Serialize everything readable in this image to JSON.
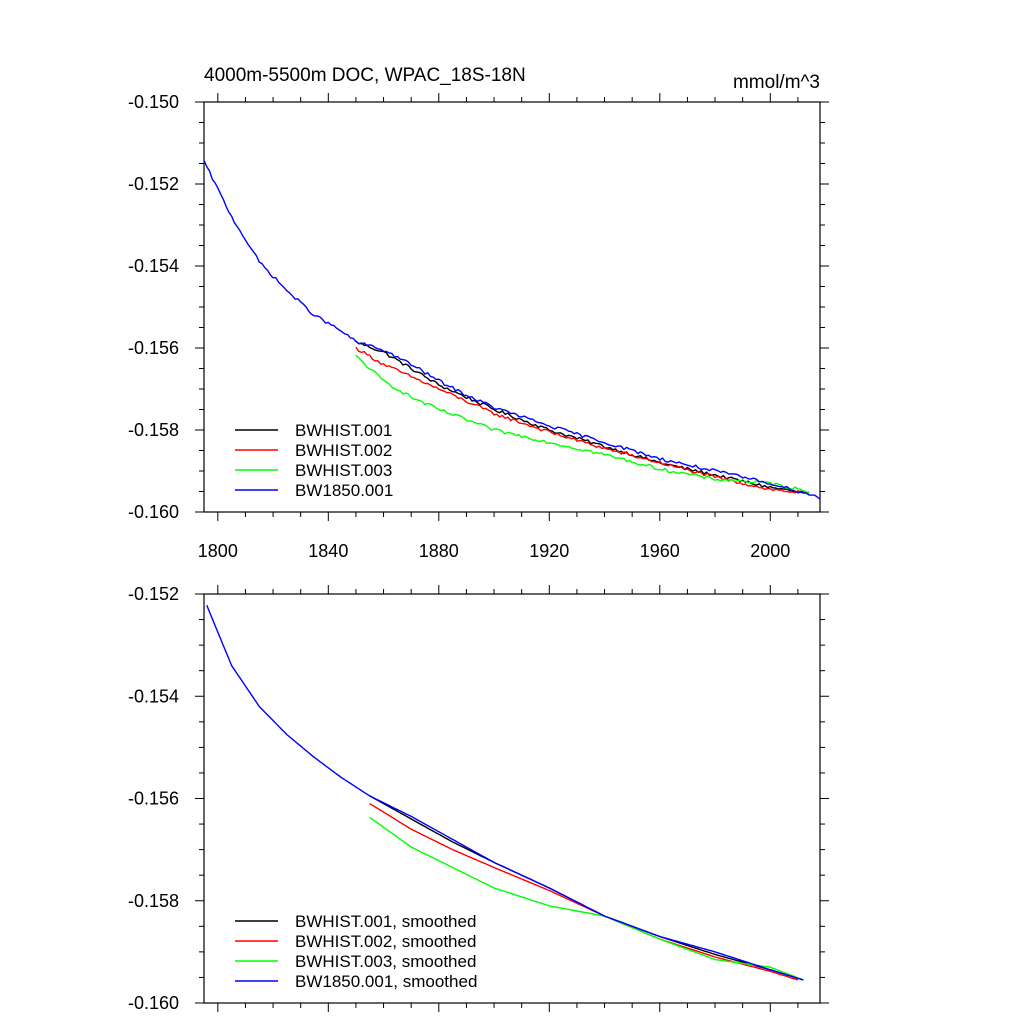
{
  "charts": [
    {
      "title": "4000m-5500m DOC, WPAC_18S-18N",
      "units": "mmol/m^3",
      "ylim": [
        -0.16,
        -0.15
      ],
      "yticks": [
        -0.15,
        -0.152,
        -0.154,
        -0.156,
        -0.158,
        -0.16
      ],
      "ytick_labels": [
        "-0.150",
        "-0.152",
        "-0.154",
        "-0.156",
        "-0.158",
        "-0.160"
      ],
      "xticks": [
        1800,
        1840,
        1880,
        1920,
        1960,
        2000
      ],
      "xtick_labels": [
        "1800",
        "1840",
        "1880",
        "1920",
        "1960",
        "2000"
      ],
      "legend": [
        "BWHIST.001",
        "BWHIST.002",
        "BWHIST.003",
        "BW1850.001"
      ]
    },
    {
      "ylim": [
        -0.16,
        -0.152
      ],
      "yticks": [
        -0.152,
        -0.154,
        -0.156,
        -0.158,
        -0.16
      ],
      "ytick_labels": [
        "-0.152",
        "-0.154",
        "-0.156",
        "-0.158",
        "-0.160"
      ],
      "xticks": [
        1800,
        1840,
        1880,
        1920,
        1960,
        2000
      ],
      "legend": [
        "BWHIST.001, smoothed",
        "BWHIST.002, smoothed",
        "BWHIST.003, smoothed",
        "BW1850.001, smoothed"
      ]
    }
  ],
  "chart_data": [
    {
      "type": "line",
      "title": "4000m-5500m DOC, WPAC_18S-18N",
      "units": "mmol/m^3",
      "xlim": [
        1795,
        2018
      ],
      "ylim": [
        -0.16,
        -0.15
      ],
      "grid": false,
      "legend_position": "bottom-left",
      "noisy": true,
      "series": [
        {
          "name": "BWHIST.001",
          "color": "#000000",
          "x": [
            1850,
            1860,
            1870,
            1880,
            1890,
            1900,
            1920,
            1940,
            1960,
            1980,
            2000,
            2014
          ],
          "y": [
            -0.15585,
            -0.1561,
            -0.1565,
            -0.1569,
            -0.1572,
            -0.1575,
            -0.158,
            -0.1584,
            -0.1588,
            -0.1591,
            -0.1594,
            -0.15955
          ]
        },
        {
          "name": "BWHIST.002",
          "color": "#ff0000",
          "x": [
            1850,
            1860,
            1870,
            1880,
            1890,
            1900,
            1920,
            1940,
            1960,
            1980,
            2000,
            2014
          ],
          "y": [
            -0.156,
            -0.1564,
            -0.1567,
            -0.157,
            -0.1573,
            -0.1576,
            -0.15805,
            -0.15845,
            -0.1588,
            -0.15915,
            -0.15945,
            -0.15955
          ]
        },
        {
          "name": "BWHIST.003",
          "color": "#00ff00",
          "x": [
            1850,
            1860,
            1870,
            1880,
            1890,
            1900,
            1920,
            1940,
            1960,
            1980,
            2000,
            2014
          ],
          "y": [
            -0.1562,
            -0.1568,
            -0.1572,
            -0.1575,
            -0.15775,
            -0.158,
            -0.1583,
            -0.1586,
            -0.15895,
            -0.1592,
            -0.1593,
            -0.1595
          ]
        },
        {
          "name": "BW1850.001",
          "color": "#0000ff",
          "x": [
            1795,
            1805,
            1815,
            1825,
            1835,
            1845,
            1850,
            1860,
            1870,
            1880,
            1890,
            1900,
            1920,
            1940,
            1960,
            1980,
            2000,
            2018
          ],
          "y": [
            -0.15145,
            -0.1528,
            -0.1539,
            -0.1546,
            -0.1552,
            -0.1556,
            -0.15585,
            -0.15605,
            -0.1564,
            -0.1568,
            -0.15715,
            -0.15745,
            -0.1579,
            -0.1583,
            -0.1587,
            -0.159,
            -0.1593,
            -0.15965
          ]
        }
      ]
    },
    {
      "type": "line",
      "xlim": [
        1795,
        2018
      ],
      "ylim": [
        -0.16,
        -0.152
      ],
      "grid": false,
      "legend_position": "bottom-left",
      "noisy": false,
      "series": [
        {
          "name": "BWHIST.001, smoothed",
          "color": "#000000",
          "x": [
            1855,
            1870,
            1885,
            1900,
            1920,
            1940,
            1960,
            1980,
            2000,
            2012
          ],
          "y": [
            -0.15595,
            -0.1564,
            -0.15685,
            -0.15725,
            -0.15775,
            -0.1583,
            -0.1587,
            -0.15905,
            -0.15935,
            -0.15955
          ]
        },
        {
          "name": "BWHIST.002, smoothed",
          "color": "#ff0000",
          "x": [
            1855,
            1870,
            1885,
            1900,
            1920,
            1940,
            1960,
            1980,
            2000,
            2010
          ],
          "y": [
            -0.1561,
            -0.1566,
            -0.157,
            -0.15735,
            -0.1578,
            -0.1583,
            -0.15875,
            -0.1591,
            -0.15938,
            -0.15955
          ]
        },
        {
          "name": "BWHIST.003, smoothed",
          "color": "#00ff00",
          "x": [
            1855,
            1870,
            1885,
            1900,
            1920,
            1940,
            1960,
            1980,
            2000,
            2012
          ],
          "y": [
            -0.15637,
            -0.15695,
            -0.15735,
            -0.15775,
            -0.1581,
            -0.1583,
            -0.15875,
            -0.15915,
            -0.1593,
            -0.15955
          ]
        },
        {
          "name": "BW1850.001, smoothed",
          "color": "#0000ff",
          "x": [
            1796,
            1805,
            1815,
            1825,
            1835,
            1845,
            1855,
            1870,
            1885,
            1900,
            1920,
            1940,
            1960,
            1980,
            2000,
            2012
          ],
          "y": [
            -0.15222,
            -0.1534,
            -0.1542,
            -0.15475,
            -0.1552,
            -0.1556,
            -0.15595,
            -0.15635,
            -0.1568,
            -0.15725,
            -0.15775,
            -0.1583,
            -0.1587,
            -0.159,
            -0.15935,
            -0.15955
          ]
        }
      ]
    }
  ]
}
